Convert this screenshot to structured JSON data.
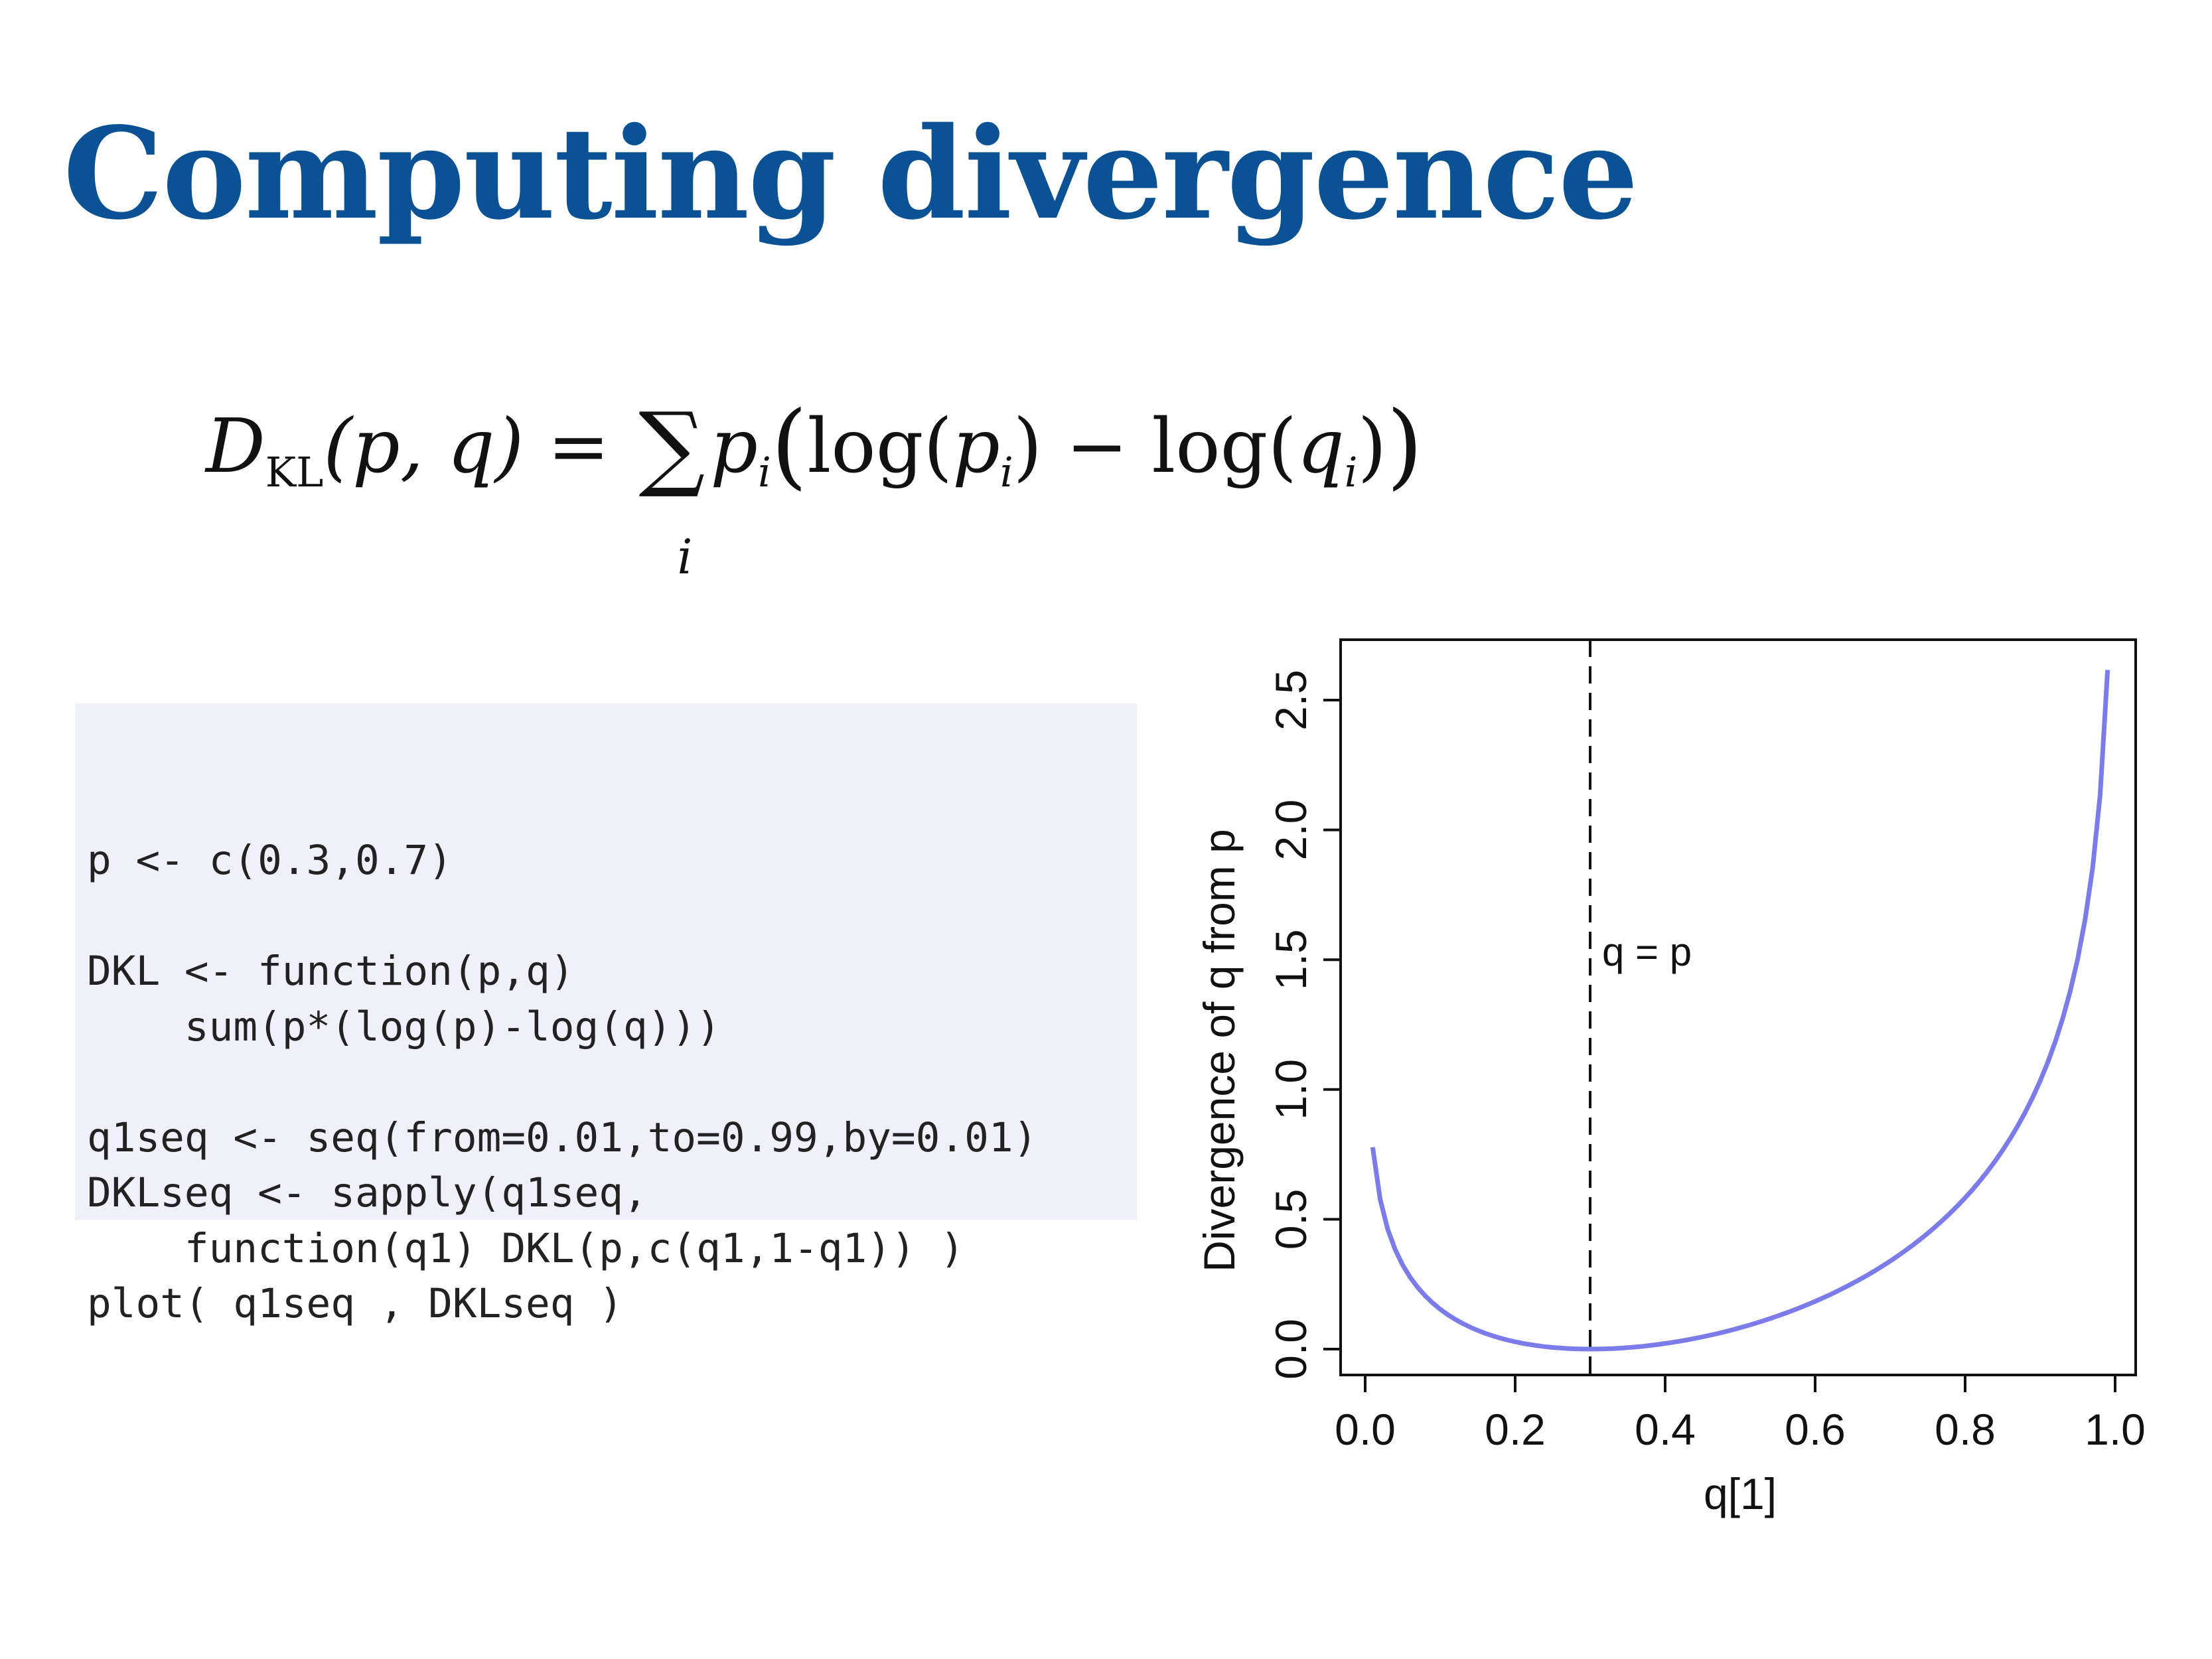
{
  "slide": {
    "title": "Computing divergence"
  },
  "formula": {
    "lhs_D": "D",
    "lhs_sub": "KL",
    "lhs_args": "(p, q)",
    "equals": "=",
    "sum_symbol": "∑",
    "sum_index": "i",
    "p": "p",
    "sub_i": "i",
    "open_big": "(",
    "log1": "log(",
    "p2": "p",
    "sub_i2": "i",
    "close1": ")",
    "minus": "−",
    "log2": "log(",
    "q": "q",
    "sub_i3": "i",
    "close2": ")",
    "close_big": ")"
  },
  "code": {
    "lines": [
      "p <- c(0.3,0.7)",
      "",
      "DKL <- function(p,q)",
      "    sum(p*(log(p)-log(q)))",
      "",
      "q1seq <- seq(from=0.01,to=0.99,by=0.01)",
      "DKLseq <- sapply(q1seq,",
      "    function(q1) DKL(p,c(q1,1-q1)) )",
      "plot( q1seq , DKLseq )"
    ]
  },
  "chart_data": {
    "type": "line",
    "xlabel": "q[1]",
    "ylabel": "Divergence of q from p",
    "xlim": [
      0.0,
      1.0
    ],
    "ylim": [
      0.0,
      2.6
    ],
    "x_ticks": [
      "0.0",
      "0.2",
      "0.4",
      "0.6",
      "0.8",
      "1.0"
    ],
    "y_ticks": [
      "0.0",
      "0.5",
      "1.0",
      "1.5",
      "2.0",
      "2.5"
    ],
    "line_color": "#7b7bea",
    "p": [
      0.3,
      0.7
    ],
    "x_range": {
      "from": 0.01,
      "to": 0.99,
      "by": 0.01
    },
    "reference_line": {
      "x": 0.3,
      "label": "q = p",
      "style": "dashed"
    },
    "grid": false
  }
}
